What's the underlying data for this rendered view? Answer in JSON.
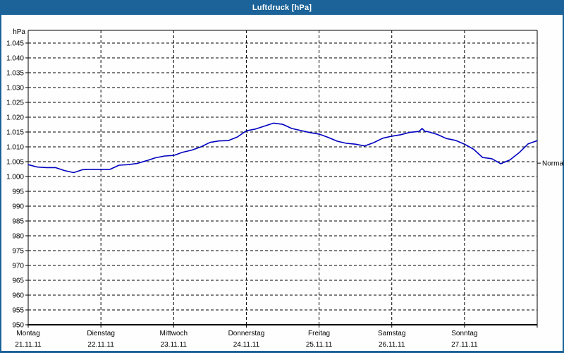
{
  "window": {
    "title": "Luftdruck [hPa]"
  },
  "colors": {
    "titlebar_bg": "#1B6399",
    "window_border": "#1B6399",
    "title_text": "#FFFFFF",
    "plot_background": "#FDFEFD",
    "grid": "#000000",
    "axis": "#000000",
    "line": "#0000C0",
    "text": "#000000"
  },
  "chart_data": {
    "type": "line",
    "title": "Luftdruck [hPa]",
    "ylabel": "hPa",
    "xlabel": "",
    "ylim": [
      950,
      1049
    ],
    "x_unit": "hours since Monday 00:00",
    "grid": "dashed black horizontal every 5 hPa, dashed vertical at each day boundary",
    "legend_position": "none",
    "y_ticks": [
      1045,
      1040,
      1035,
      1030,
      1025,
      1020,
      1015,
      1010,
      1005,
      1000,
      995,
      990,
      985,
      980,
      975,
      970,
      965,
      960,
      955,
      950
    ],
    "y_tick_labels": [
      "1.045",
      "1.040",
      "1.035",
      "1.030",
      "1.025",
      "1.020",
      "1.015",
      "1.010",
      "1.005",
      "1.000",
      "995",
      "990",
      "985",
      "980",
      "975",
      "970",
      "965",
      "960",
      "955",
      "950"
    ],
    "days": [
      {
        "name": "Montag",
        "date": "21.11.11"
      },
      {
        "name": "Dienstag",
        "date": "22.11.11"
      },
      {
        "name": "Mittwoch",
        "date": "23.11.11"
      },
      {
        "name": "Donnerstag",
        "date": "24.11.11"
      },
      {
        "name": "Freitag",
        "date": "25.11.11"
      },
      {
        "name": "Samstag",
        "date": "26.11.11"
      },
      {
        "name": "Sonntag",
        "date": "27.11.11"
      }
    ],
    "annotations": [
      {
        "label": "Normal",
        "y": 1004.5,
        "side": "right"
      }
    ],
    "series": [
      {
        "name": "Luftdruck",
        "color": "#0000C0",
        "x": [
          0,
          3,
          6,
          9,
          12,
          15,
          18,
          21,
          24,
          27,
          30,
          33,
          36,
          39,
          42,
          45,
          48,
          51,
          54,
          57,
          60,
          63,
          66,
          69,
          72,
          75,
          78,
          81,
          84,
          87,
          90,
          93,
          96,
          99,
          102,
          105,
          108,
          111,
          114,
          117,
          120,
          123,
          126,
          129,
          130,
          131,
          132,
          135,
          138,
          141,
          144,
          147,
          150,
          153,
          156,
          159,
          162,
          165,
          168
        ],
        "y": [
          1004.0,
          1003.2,
          1003.0,
          1003.0,
          1002.0,
          1001.3,
          1002.3,
          1002.4,
          1002.4,
          1002.4,
          1003.8,
          1004.0,
          1004.4,
          1005.3,
          1006.3,
          1006.9,
          1007.1,
          1008.2,
          1008.9,
          1010.0,
          1011.5,
          1012.0,
          1012.1,
          1013.3,
          1015.4,
          1016.0,
          1017.0,
          1018.0,
          1017.6,
          1016.2,
          1015.5,
          1014.8,
          1014.3,
          1013.2,
          1011.9,
          1011.2,
          1010.9,
          1010.3,
          1011.4,
          1012.9,
          1013.6,
          1014.1,
          1014.9,
          1015.2,
          1016.2,
          1015.2,
          1015.1,
          1014.2,
          1012.8,
          1012.2,
          1010.9,
          1009.2,
          1006.4,
          1006.0,
          1004.3,
          1005.6,
          1008.0,
          1011.0,
          1012.1
        ]
      }
    ]
  }
}
